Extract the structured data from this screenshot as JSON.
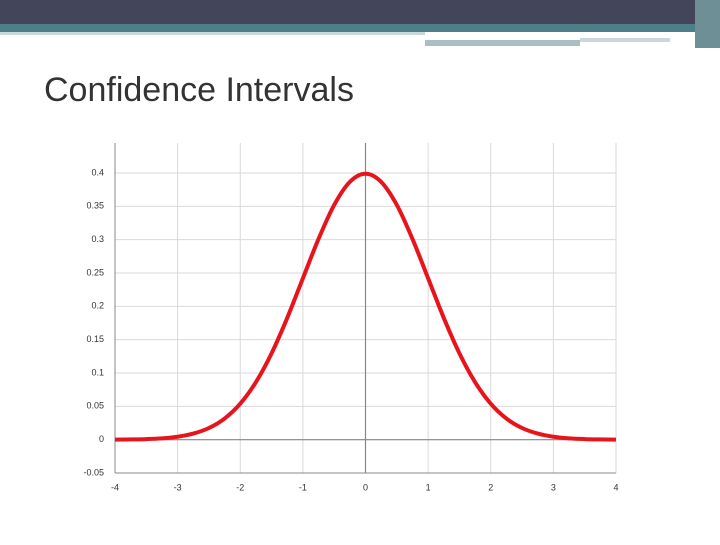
{
  "slide": {
    "title": "Confidence Intervals"
  },
  "chart_data": {
    "type": "line",
    "x": [
      -4,
      -3.75,
      -3.5,
      -3.25,
      -3,
      -2.75,
      -2.5,
      -2.25,
      -2,
      -1.75,
      -1.5,
      -1.25,
      -1,
      -0.75,
      -0.5,
      -0.25,
      0,
      0.25,
      0.5,
      0.75,
      1,
      1.25,
      1.5,
      1.75,
      2,
      2.25,
      2.5,
      2.75,
      3,
      3.25,
      3.5,
      3.75,
      4
    ],
    "series": [
      {
        "color": "#e8141c",
        "values": [
          0.0001,
          0.0004,
          0.0009,
          0.002,
          0.0044,
          0.0091,
          0.0175,
          0.0317,
          0.054,
          0.0863,
          0.1295,
          0.1826,
          0.242,
          0.3011,
          0.3521,
          0.3867,
          0.3989,
          0.3867,
          0.3521,
          0.3011,
          0.242,
          0.1826,
          0.1295,
          0.0863,
          0.054,
          0.0317,
          0.0175,
          0.0091,
          0.0044,
          0.002,
          0.0009,
          0.0004,
          0.0001
        ]
      }
    ],
    "xlim": [
      -4,
      4
    ],
    "xticks": [
      -4,
      -3,
      -2,
      -1,
      0,
      1,
      2,
      3,
      4
    ],
    "ylim": [
      -0.05,
      0.445
    ],
    "yticks": [
      -0.05,
      0,
      0.05,
      0.1,
      0.15,
      0.2,
      0.25,
      0.3,
      0.35,
      0.4
    ],
    "grid": true
  }
}
